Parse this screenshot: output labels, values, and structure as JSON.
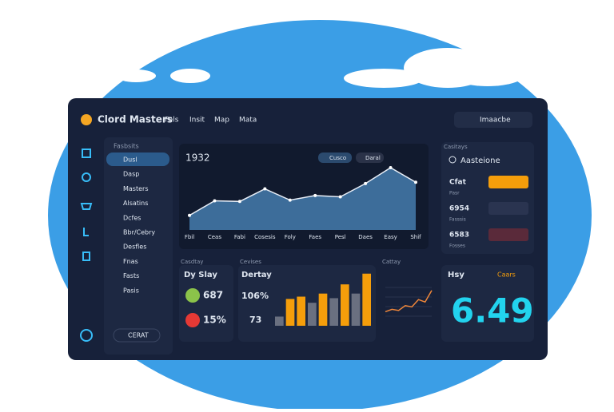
{
  "header": {
    "logo": "Clord Masters",
    "nav": [
      "Fels",
      "Insit",
      "Map",
      "Mata"
    ],
    "button": "Imaacbe"
  },
  "sidebar": {
    "title": "Fasbsits",
    "items": [
      "Dusl",
      "Dasp",
      "Masters",
      "Alsatins",
      "Dcfes",
      "Bbr/Cebry",
      "Desfles",
      "Fnas",
      "Fasts",
      "Pasis"
    ],
    "button": "CERAT"
  },
  "filters": [
    "Cusco",
    "Daral"
  ],
  "stats_card": {
    "label": "Casdtay",
    "title": "Dy Slay",
    "rows": [
      "687",
      "15%"
    ]
  },
  "bar_card": {
    "label": "Cevises",
    "title": "Dertay",
    "stats": [
      "106%",
      "73"
    ],
    "side_label": "Cattay"
  },
  "right_panel": {
    "title": "Casitays",
    "search": "Aasteione",
    "rows": [
      {
        "name": "Cfat",
        "sub": "Pasr"
      },
      {
        "name": "6954",
        "sub": "Fasssis"
      },
      {
        "name": "6583",
        "sub": "Fosses"
      }
    ]
  },
  "big_card": {
    "label": "Hsy",
    "status": "Caars",
    "value": "6.49"
  },
  "chart_data": [
    {
      "type": "area",
      "title": "1932",
      "categories": [
        "Fbil",
        "Ceas",
        "Fabi",
        "Cosesis",
        "Foly",
        "Faes",
        "Pesl",
        "Daes",
        "Easy",
        "Shif"
      ],
      "values": [
        22,
        44,
        43,
        62,
        45,
        52,
        50,
        70,
        94,
        72
      ],
      "color": "#3d6d9a",
      "ylim": [
        0,
        100
      ]
    },
    {
      "type": "bar",
      "values": [
        12,
        35,
        38,
        30,
        42,
        36,
        54,
        42,
        68
      ],
      "colors": [
        "#6a7080",
        "#f59e0b",
        "#f59e0b",
        "#6a7080",
        "#f59e0b",
        "#6a7080",
        "#f59e0b",
        "#6a7080",
        "#f59e0b"
      ],
      "ylim": [
        0,
        75
      ]
    },
    {
      "type": "line",
      "values": [
        10,
        14,
        12,
        20,
        18,
        30,
        26,
        45
      ],
      "color": "#f0873a",
      "ylim": [
        0,
        50
      ]
    }
  ]
}
